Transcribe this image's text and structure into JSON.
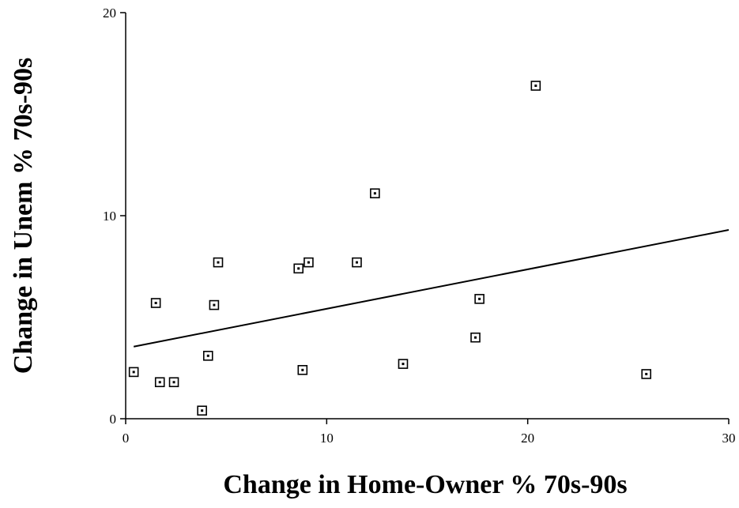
{
  "chart_data": {
    "type": "scatter",
    "title": "",
    "xlabel": "Change in Home-Owner % 70s-90s",
    "ylabel": "Change in Unem % 70s-90s",
    "xlim": [
      0,
      30
    ],
    "ylim": [
      0,
      20
    ],
    "x_ticks": [
      "0",
      "10",
      "20",
      "30"
    ],
    "y_ticks": [
      "0",
      "10",
      "20"
    ],
    "grid": false,
    "legend": "none",
    "marker": "square-with-dot",
    "series": [
      {
        "points": [
          {
            "x": 0.4,
            "y": 2.3
          },
          {
            "x": 1.5,
            "y": 5.7
          },
          {
            "x": 1.7,
            "y": 1.8
          },
          {
            "x": 2.4,
            "y": 1.8
          },
          {
            "x": 3.8,
            "y": 0.4
          },
          {
            "x": 4.1,
            "y": 3.1
          },
          {
            "x": 4.4,
            "y": 5.6
          },
          {
            "x": 4.6,
            "y": 7.7
          },
          {
            "x": 8.6,
            "y": 7.4
          },
          {
            "x": 8.8,
            "y": 2.4
          },
          {
            "x": 9.1,
            "y": 7.7
          },
          {
            "x": 11.5,
            "y": 7.7
          },
          {
            "x": 12.4,
            "y": 11.1
          },
          {
            "x": 13.8,
            "y": 2.7
          },
          {
            "x": 17.4,
            "y": 4.0
          },
          {
            "x": 17.6,
            "y": 5.9
          },
          {
            "x": 20.4,
            "y": 16.4
          },
          {
            "x": 25.9,
            "y": 2.2
          }
        ]
      }
    ],
    "trendline": {
      "x": [
        0.4,
        30
      ],
      "y": [
        3.55,
        9.3
      ]
    }
  }
}
